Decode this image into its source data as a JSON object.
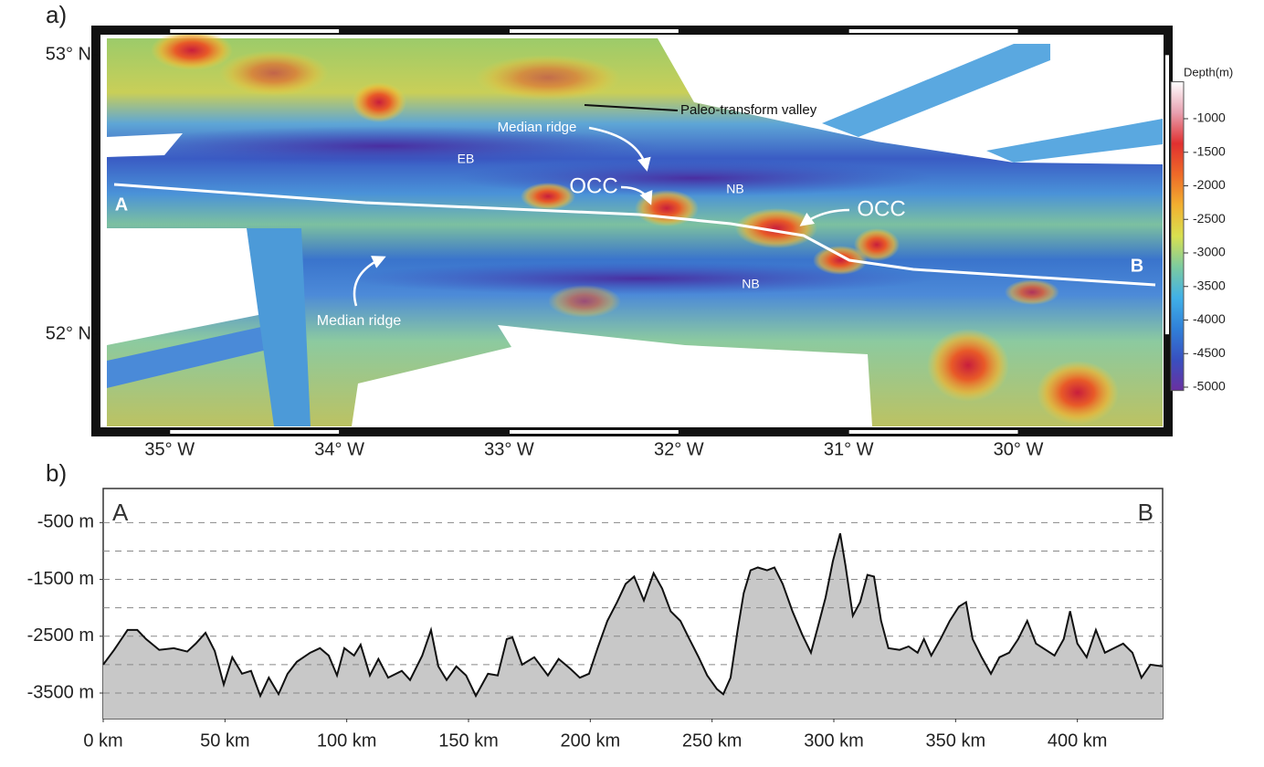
{
  "chart_data": [
    {
      "type": "map",
      "panel_label": "a)",
      "xlim": [
        -35.37,
        -29.15
      ],
      "ylim": [
        51.67,
        53.06
      ],
      "xticks": [
        {
          "value": -35,
          "label": "35° W"
        },
        {
          "value": -34,
          "label": "34° W"
        },
        {
          "value": -33,
          "label": "33° W"
        },
        {
          "value": -32,
          "label": "32° W"
        },
        {
          "value": -31,
          "label": "31° W"
        },
        {
          "value": -30,
          "label": "30° W"
        }
      ],
      "yticks": [
        {
          "value": 52,
          "label": "52° N"
        },
        {
          "value": 53,
          "label": "53° N"
        }
      ],
      "colorbar": {
        "title": "Depth(m)",
        "lim": [
          -5050,
          -450
        ],
        "ticks": [
          -1000,
          -1500,
          -2000,
          -2500,
          -3000,
          -3500,
          -4000,
          -4500,
          -5000
        ],
        "colors": [
          "#ffffff",
          "#e8a0b0",
          "#e03030",
          "#ee6a28",
          "#f2b030",
          "#d8e050",
          "#7ccba0",
          "#40b0e8",
          "#3080d8",
          "#3850c0",
          "#6a30a0"
        ]
      },
      "annotations": [
        "Paleo-transform valley",
        "Median ridge",
        "Median ridge",
        "EB",
        "NB",
        "NB",
        "OCC",
        "OCC",
        "A",
        "B"
      ]
    },
    {
      "type": "area",
      "panel_label": "b)",
      "color": "#c8c8c8",
      "x": [
        0,
        4.5,
        10,
        14,
        17.6,
        23,
        29,
        34.5,
        38,
        42,
        45.8,
        49.5,
        53,
        57,
        60.7,
        64.5,
        68,
        72,
        75.7,
        79.5,
        85,
        89,
        92.6,
        96,
        99,
        103,
        105.7,
        109.5,
        113,
        117,
        122.6,
        126,
        131,
        134.6,
        137.6,
        141,
        145,
        149,
        153,
        158,
        162,
        165.7,
        168,
        172,
        177,
        182.6,
        187,
        192,
        195.7,
        199.5,
        203,
        207,
        211,
        214.5,
        218,
        222,
        226,
        229.5,
        233,
        237,
        240.7,
        244.5,
        248,
        252,
        254.6,
        257.6,
        260.5,
        263,
        265.8,
        268.8,
        272.6,
        275.6,
        279,
        283,
        287,
        290.6,
        293.6,
        296.6,
        299.6,
        302.6,
        304.8,
        307.8,
        310.8,
        313.8,
        316.5,
        319.4,
        322.4,
        327,
        330.7,
        334.4,
        337,
        340,
        343.8,
        347.6,
        351.3,
        354.3,
        357,
        360.7,
        364.5,
        368,
        372,
        375.7,
        379.4,
        383,
        387,
        390.6,
        394.4,
        397,
        400,
        403.8,
        407.6,
        411.3,
        415,
        418.8,
        422.6,
        426.3,
        430,
        435
      ],
      "values": [
        -3000,
        -2740,
        -2390,
        -2390,
        -2550,
        -2740,
        -2710,
        -2770,
        -2630,
        -2440,
        -2760,
        -3350,
        -2870,
        -3160,
        -3110,
        -3550,
        -3230,
        -3520,
        -3160,
        -2950,
        -2790,
        -2710,
        -2840,
        -3190,
        -2710,
        -2840,
        -2650,
        -3190,
        -2900,
        -3230,
        -3110,
        -3270,
        -2840,
        -2390,
        -3030,
        -3270,
        -3030,
        -3190,
        -3550,
        -3160,
        -3190,
        -2550,
        -2520,
        -3000,
        -2870,
        -3190,
        -2900,
        -3080,
        -3230,
        -3160,
        -2710,
        -2230,
        -1900,
        -1580,
        -1450,
        -1870,
        -1390,
        -1660,
        -2060,
        -2230,
        -2550,
        -2870,
        -3190,
        -3430,
        -3520,
        -3230,
        -2390,
        -1740,
        -1340,
        -1290,
        -1340,
        -1290,
        -1580,
        -2060,
        -2470,
        -2790,
        -2310,
        -1820,
        -1180,
        -690,
        -1260,
        -2140,
        -1900,
        -1420,
        -1450,
        -2230,
        -2710,
        -2740,
        -2680,
        -2790,
        -2550,
        -2840,
        -2550,
        -2230,
        -1980,
        -1900,
        -2550,
        -2870,
        -3160,
        -2870,
        -2790,
        -2550,
        -2230,
        -2630,
        -2740,
        -2840,
        -2550,
        -2060,
        -2630,
        -2870,
        -2390,
        -2790,
        -2710,
        -2630,
        -2790,
        -3230,
        -3000,
        -3030
      ],
      "xlim": [
        0,
        435
      ],
      "ylim": [
        -3950,
        100
      ],
      "xticks": [
        {
          "value": 0,
          "label": "0 km"
        },
        {
          "value": 50,
          "label": "50 km"
        },
        {
          "value": 100,
          "label": "100 km"
        },
        {
          "value": 150,
          "label": "150 km"
        },
        {
          "value": 200,
          "label": "200 km"
        },
        {
          "value": 250,
          "label": "250 km"
        },
        {
          "value": 300,
          "label": "300 km"
        },
        {
          "value": 350,
          "label": "350 km"
        },
        {
          "value": 400,
          "label": "400 km"
        }
      ],
      "yticks": [
        {
          "value": -500,
          "label": "-500 m"
        },
        {
          "value": -1500,
          "label": "-1500 m"
        },
        {
          "value": -2500,
          "label": "-2500 m"
        },
        {
          "value": -3500,
          "label": "-3500 m"
        }
      ],
      "ygrid": [
        -500,
        -1000,
        -1500,
        -2000,
        -2500,
        -3000,
        -3500
      ],
      "annotations": [
        "A",
        "B"
      ]
    }
  ]
}
